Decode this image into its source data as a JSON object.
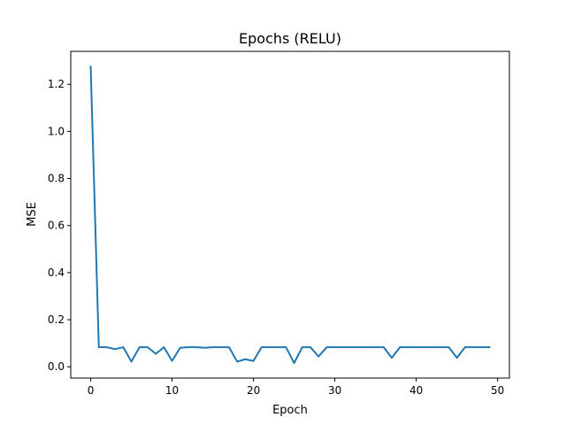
{
  "chart_data": {
    "type": "line",
    "title": "Epochs (RELU)",
    "xlabel": "Epoch",
    "ylabel": "MSE",
    "xlim": [
      -2.45,
      51.45
    ],
    "ylim": [
      -0.048,
      1.34
    ],
    "xticks": [
      0,
      10,
      20,
      30,
      40,
      50
    ],
    "yticks": [
      0.0,
      0.2,
      0.4,
      0.6,
      0.8,
      1.0,
      1.2
    ],
    "grid": false,
    "legend": "none",
    "series": [
      {
        "color": "#1f77b4",
        "x": [
          0,
          1,
          2,
          3,
          4,
          5,
          6,
          7,
          8,
          9,
          10,
          11,
          12,
          13,
          14,
          15,
          16,
          17,
          18,
          19,
          20,
          21,
          22,
          23,
          24,
          25,
          26,
          27,
          28,
          29,
          30,
          31,
          32,
          33,
          34,
          35,
          36,
          37,
          38,
          39,
          40,
          41,
          42,
          43,
          44,
          45,
          46,
          47,
          48,
          49
        ],
        "y": [
          1.275,
          0.083,
          0.083,
          0.075,
          0.083,
          0.022,
          0.083,
          0.083,
          0.055,
          0.083,
          0.025,
          0.081,
          0.083,
          0.083,
          0.081,
          0.083,
          0.083,
          0.083,
          0.022,
          0.032,
          0.025,
          0.083,
          0.083,
          0.083,
          0.083,
          0.016,
          0.083,
          0.083,
          0.044,
          0.083,
          0.083,
          0.083,
          0.083,
          0.083,
          0.083,
          0.083,
          0.083,
          0.038,
          0.083,
          0.083,
          0.083,
          0.083,
          0.083,
          0.083,
          0.083,
          0.038,
          0.083,
          0.083,
          0.083,
          0.083
        ]
      }
    ]
  }
}
